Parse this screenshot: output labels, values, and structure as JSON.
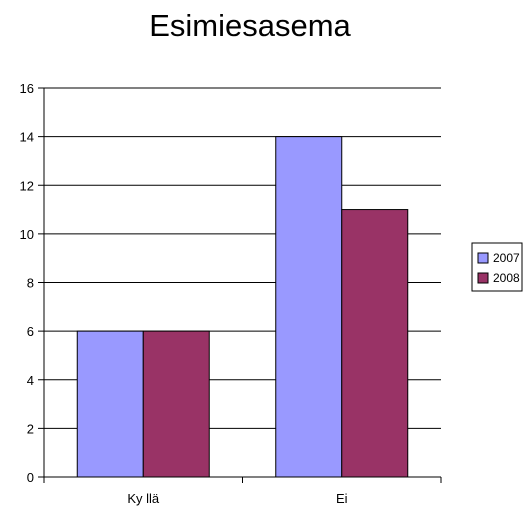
{
  "chart_data": {
    "type": "bar",
    "title": "Esimiesasema",
    "categories": [
      "Ky llä",
      "Ei"
    ],
    "series": [
      {
        "name": "2007",
        "values": [
          6,
          14
        ],
        "color": "#9999ff"
      },
      {
        "name": "2008",
        "values": [
          6,
          11
        ],
        "color": "#993366"
      }
    ],
    "xlabel": "",
    "ylabel": "",
    "ylim": [
      0,
      16
    ],
    "yticks": [
      0,
      2,
      4,
      6,
      8,
      10,
      12,
      14,
      16
    ],
    "grid": true,
    "legend": "right"
  }
}
